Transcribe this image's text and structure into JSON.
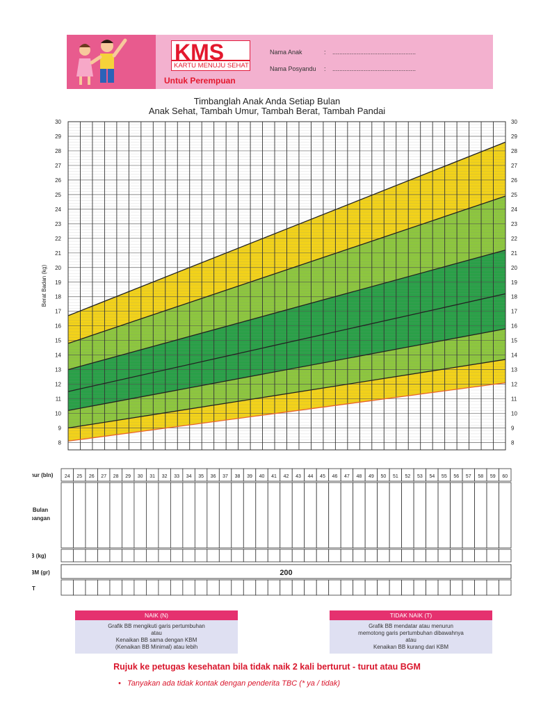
{
  "header": {
    "logo": "KMS",
    "logo_sub": "KARTU MENUJU SEHAT",
    "subtitle": "Untuk Perempuan",
    "fields": [
      {
        "label": "Nama Anak",
        "value": "................................................"
      },
      {
        "label": "Nama Posyandu",
        "value": "................................................"
      }
    ],
    "colors": {
      "header_bg": "#f3b1cf",
      "brand_red": "#e3182d",
      "kids_bg": "#e85b8e"
    }
  },
  "titles": {
    "line1": "Timbanglah Anak Anda Setiap Bulan",
    "line2": "Anak Sehat, Tambah Umur, Tambah Berat, Tambah Pandai"
  },
  "chart_data": {
    "type": "area",
    "ylabel": "Berat Badan (kg)",
    "xlabel": "Umur (bln)",
    "xlim": [
      24,
      60
    ],
    "ylim": [
      7.5,
      30
    ],
    "yticks": [
      8,
      9,
      10,
      11,
      12,
      13,
      14,
      15,
      16,
      17,
      18,
      19,
      20,
      21,
      22,
      23,
      24,
      25,
      26,
      27,
      28,
      29,
      30
    ],
    "x_categories": [
      24,
      25,
      26,
      27,
      28,
      29,
      30,
      31,
      32,
      33,
      34,
      35,
      36,
      37,
      38,
      39,
      40,
      41,
      42,
      43,
      44,
      45,
      46,
      47,
      48,
      49,
      50,
      51,
      52,
      53,
      54,
      55,
      56,
      57,
      58,
      59,
      60
    ],
    "grid": true,
    "curves": [
      {
        "name": "",
        "x": [
          24,
          60
        ],
        "y": [
          8.1,
          12.1
        ],
        "color": "#e8622a"
      },
      {
        "name": "",
        "x": [
          24,
          60
        ],
        "y": [
          9.0,
          13.7
        ],
        "color": "#222222"
      },
      {
        "name": "",
        "x": [
          24,
          60
        ],
        "y": [
          10.2,
          15.8
        ],
        "color": "#222222"
      },
      {
        "name": "",
        "x": [
          24,
          60
        ],
        "y": [
          11.5,
          18.2
        ],
        "color": "#222222"
      },
      {
        "name": "",
        "x": [
          24,
          60
        ],
        "y": [
          13.0,
          21.2
        ],
        "color": "#222222"
      },
      {
        "name": "",
        "x": [
          24,
          60
        ],
        "y": [
          14.8,
          24.9
        ],
        "color": "#222222"
      },
      {
        "name": "",
        "x": [
          24,
          60
        ],
        "y": [
          16.7,
          28.6
        ],
        "color": "#222222"
      }
    ],
    "band_colors": [
      "#f2d21a",
      "#8dc63f",
      "#2aa048",
      "#2aa048",
      "#8dc63f",
      "#f2d21a"
    ]
  },
  "table": {
    "rows": [
      "Umur (bln)",
      "Bulan penimbangan",
      "BB (kg)",
      "KBM (gr)",
      "N/T"
    ],
    "kbm_value": "200"
  },
  "legend": {
    "naik": {
      "title": "NAIK (N)",
      "lines": [
        "Grafik BB mengikuti garis pertumbuhan",
        "atau",
        "Kenaikan BB sama dengan KBM",
        "(Kenaikan BB Minimal) atau lebih"
      ]
    },
    "tidak_naik": {
      "title": "TIDAK NAIK (T)",
      "lines": [
        "Grafik BB mendatar atau menurun",
        "memotong garis pertumbuhan dibawahnya",
        "atau",
        "Kenaikan BB kurang dari KBM"
      ]
    }
  },
  "footer": {
    "rujuk": "Rujuk ke petugas kesehatan bila tidak naik 2 kali berturut - turut atau BGM",
    "tanya": "Tanyakan ada tidak kontak dengan penderita TBC (* ya / tidak)"
  }
}
